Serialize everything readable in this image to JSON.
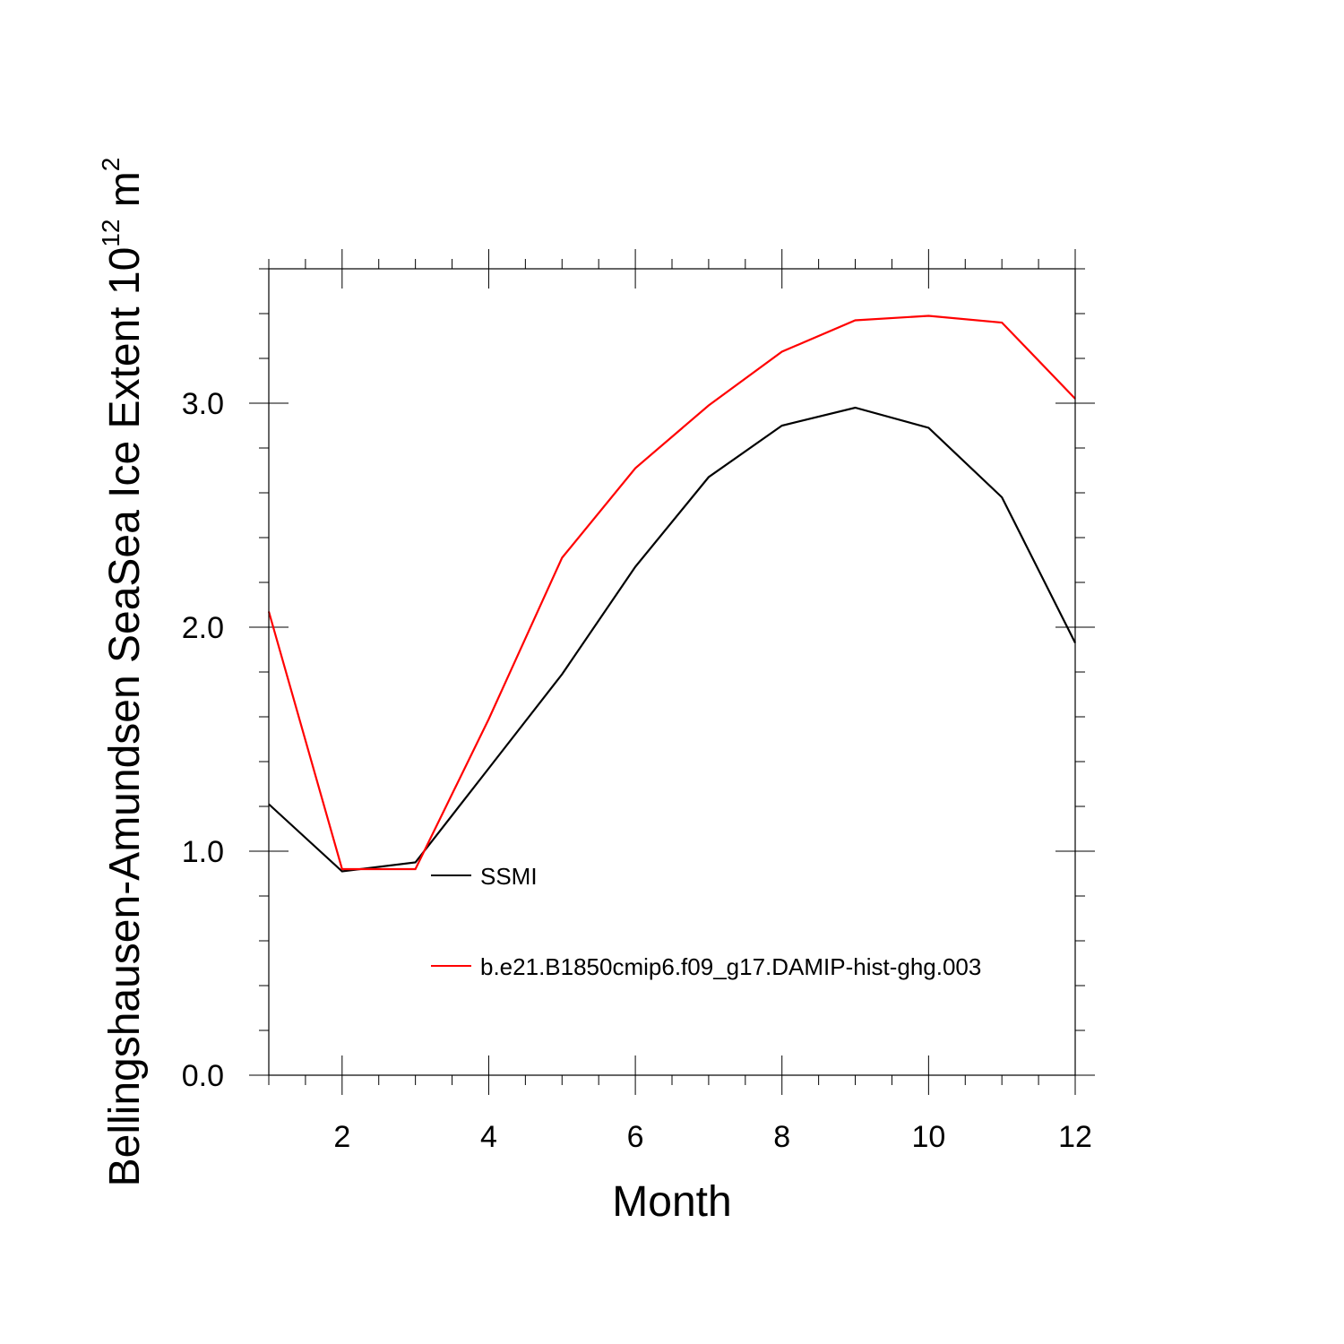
{
  "chart_data": {
    "type": "line",
    "xlabel": "Month",
    "ylabel": {
      "text": "Bellingshausen-Amundsen SeaSea Ice Extent 10",
      "superscript1": "12",
      "middle": " m",
      "superscript2": "2"
    },
    "xlim": [
      1,
      12
    ],
    "ylim": [
      0,
      3.6
    ],
    "x_ticks": [
      2,
      4,
      6,
      8,
      10,
      12
    ],
    "x_tick_labels": [
      "2",
      "4",
      "6",
      "8",
      "10",
      "12"
    ],
    "y_ticks": [
      0,
      1,
      2,
      3
    ],
    "y_tick_labels": [
      "0.0",
      "1.0",
      "2.0",
      "3.0"
    ],
    "grid": false,
    "legend_position": "inside-lower-right",
    "x": [
      1,
      2,
      3,
      4,
      5,
      6,
      7,
      8,
      9,
      10,
      11,
      12
    ],
    "series": [
      {
        "name": "SSMI",
        "color": "#000000",
        "values": [
          1.21,
          0.91,
          0.95,
          1.37,
          1.79,
          2.27,
          2.67,
          2.9,
          2.98,
          2.89,
          2.58,
          1.93
        ]
      },
      {
        "name": "b.e21.B1850cmip6.f09_g17.DAMIP-hist-ghg.003",
        "color": "#ff0000",
        "values": [
          2.07,
          0.92,
          0.92,
          1.59,
          2.31,
          2.71,
          2.99,
          3.23,
          3.37,
          3.39,
          3.36,
          3.02
        ]
      }
    ]
  }
}
